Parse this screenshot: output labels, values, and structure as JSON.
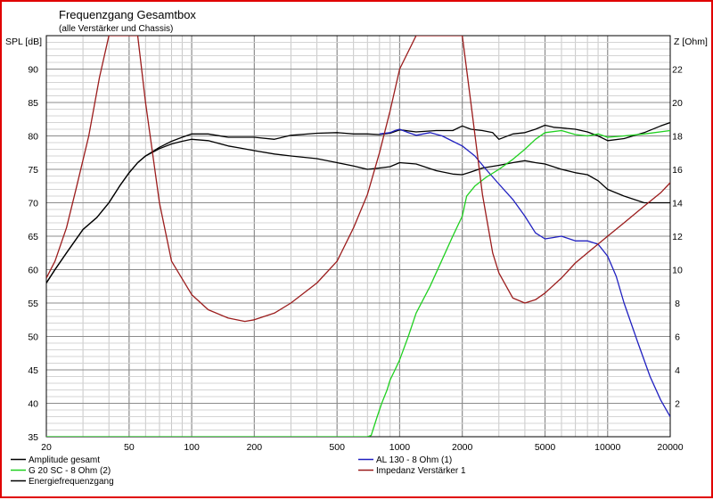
{
  "chart_data": {
    "type": "line",
    "title": "Frequenzgang Gesamtbox",
    "subtitle": "(alle Verstärker und Chassis)",
    "ylabel_left": "SPL [dB]",
    "ylabel_right": "Z [Ohm]",
    "x_scale": "log",
    "xlim": [
      20,
      20000
    ],
    "ylim_left": [
      35,
      95
    ],
    "ylim_right": [
      0,
      24
    ],
    "grid": true,
    "x_ticks": [
      20,
      50,
      100,
      200,
      500,
      1000,
      2000,
      5000,
      10000,
      20000
    ],
    "x_tick_labels": [
      "20",
      "50",
      "100",
      "200",
      "500",
      "1000",
      "2000",
      "5000",
      "10000",
      "20000"
    ],
    "y_left_ticks": [
      35,
      40,
      45,
      50,
      55,
      60,
      65,
      70,
      75,
      80,
      85,
      90
    ],
    "y_right_ticks": [
      2,
      4,
      6,
      8,
      10,
      12,
      14,
      16,
      18,
      20,
      22
    ],
    "legend": [
      {
        "name": "Amplitude gesamt",
        "color": "#000000"
      },
      {
        "name": "AL 130 - 8 Ohm (1)",
        "color": "#2020c0"
      },
      {
        "name": "G 20 SC - 8 Ohm (2)",
        "color": "#20d020"
      },
      {
        "name": "Impedanz Verstärker 1",
        "color": "#9b1c1c"
      },
      {
        "name": "Energiefrequenzgang",
        "color": "#000000"
      }
    ],
    "series": [
      {
        "name": "Amplitude gesamt",
        "axis": "left",
        "color": "#000000",
        "x": [
          20,
          22,
          25,
          30,
          35,
          40,
          45,
          50,
          55,
          60,
          70,
          80,
          90,
          100,
          120,
          150,
          200,
          250,
          300,
          400,
          500,
          600,
          700,
          800,
          900,
          1000,
          1200,
          1500,
          1800,
          2000,
          2200,
          2500,
          2800,
          3000,
          3500,
          4000,
          4500,
          5000,
          5500,
          6000,
          7000,
          8000,
          9000,
          10000,
          12000,
          15000,
          18000,
          20000
        ],
        "values": [
          58,
          60,
          62.5,
          66,
          67.8,
          70,
          72.5,
          74.5,
          76,
          77,
          78.3,
          79.2,
          79.8,
          80.3,
          80.3,
          79.8,
          79.8,
          79.5,
          80.1,
          80.4,
          80.5,
          80.3,
          80.3,
          80.2,
          80.4,
          80.9,
          80.6,
          80.8,
          80.8,
          81.5,
          81,
          80.8,
          80.5,
          79.5,
          80.3,
          80.5,
          81,
          81.6,
          81.3,
          81.2,
          81,
          80.6,
          80,
          79.3,
          79.6,
          80.5,
          81.5,
          82
        ]
      },
      {
        "name": "Energiefrequenzgang",
        "axis": "left",
        "color": "#000000",
        "x": [
          20,
          22,
          25,
          30,
          35,
          40,
          45,
          50,
          55,
          60,
          70,
          80,
          90,
          100,
          120,
          150,
          170,
          200,
          250,
          300,
          400,
          500,
          600,
          700,
          800,
          900,
          1000,
          1200,
          1500,
          1800,
          2000,
          2200,
          2500,
          3000,
          3500,
          4000,
          4500,
          5000,
          6000,
          7000,
          8000,
          9000,
          10000,
          12000,
          15000,
          18000,
          20000
        ],
        "values": [
          58,
          60,
          62.5,
          66,
          67.8,
          70,
          72.5,
          74.5,
          76,
          77,
          78.1,
          78.8,
          79.2,
          79.5,
          79.3,
          78.5,
          78.2,
          77.8,
          77.3,
          77,
          76.6,
          76,
          75.5,
          75,
          75.2,
          75.4,
          76,
          75.8,
          74.8,
          74.3,
          74.2,
          74.6,
          75.2,
          75.6,
          76,
          76.3,
          76,
          75.8,
          75,
          74.5,
          74.2,
          73.3,
          72,
          71,
          70,
          70,
          70
        ]
      },
      {
        "name": "AL 130 - 8 Ohm (1)",
        "axis": "left",
        "color": "#2020c0",
        "x": [
          800,
          900,
          950,
          1000,
          1100,
          1200,
          1400,
          1600,
          1800,
          2000,
          2300,
          2600,
          3000,
          3500,
          4000,
          4500,
          5000,
          5500,
          6000,
          7000,
          8000,
          9000,
          10000,
          11000,
          12000,
          14000,
          16000,
          18000,
          20000
        ],
        "values": [
          80.3,
          80.5,
          80.8,
          81,
          80.5,
          80.1,
          80.5,
          80,
          79.2,
          78.5,
          77,
          75,
          72.8,
          70.5,
          68,
          65.5,
          64.6,
          64.8,
          65,
          64.3,
          64.3,
          63.8,
          62,
          59,
          55,
          49,
          44,
          40.5,
          38
        ]
      },
      {
        "name": "G 20 SC - 8 Ohm (2)",
        "axis": "left",
        "color": "#20d020",
        "x": [
          20,
          100,
          300,
          600,
          700,
          730,
          780,
          820,
          870,
          900,
          950,
          1000,
          1100,
          1200,
          1400,
          1600,
          1800,
          2000,
          2100,
          2300,
          2600,
          3000,
          3500,
          4000,
          4500,
          5000,
          6000,
          7000,
          8000,
          9000,
          10000,
          12000,
          15000,
          20000
        ],
        "values": [
          35,
          35,
          35,
          35,
          35,
          35.2,
          38,
          40,
          42,
          43.5,
          45,
          46.5,
          50,
          53.5,
          57.5,
          61.5,
          65,
          68,
          71,
          72.5,
          73.8,
          75,
          76.5,
          78,
          79.5,
          80.5,
          80.8,
          80.2,
          80,
          80.3,
          79.8,
          80,
          80.3,
          80.8
        ]
      },
      {
        "name": "Impedanz Verstärker 1",
        "axis": "right",
        "color": "#9b1c1c",
        "x": [
          20,
          22,
          25,
          28,
          32,
          36,
          40,
          45,
          50,
          55,
          60,
          70,
          80,
          100,
          120,
          150,
          180,
          200,
          250,
          300,
          400,
          500,
          600,
          700,
          800,
          900,
          1000,
          1200,
          1500,
          2000,
          2200,
          2500,
          2800,
          3000,
          3500,
          4000,
          4500,
          5000,
          6000,
          7000,
          8000,
          10000,
          12000,
          15000,
          18000,
          20000
        ],
        "values": [
          9.5,
          10.5,
          12.5,
          15,
          18,
          21.5,
          24,
          24,
          24,
          24,
          20,
          14,
          10.5,
          8.5,
          7.6,
          7.1,
          6.9,
          7,
          7.4,
          8,
          9.2,
          10.5,
          12.5,
          14.5,
          17,
          19.5,
          22,
          24,
          24,
          24,
          20,
          14.5,
          11,
          9.8,
          8.3,
          8,
          8.2,
          8.6,
          9.5,
          10.4,
          11,
          12,
          12.8,
          13.8,
          14.6,
          15.2
        ]
      }
    ]
  }
}
